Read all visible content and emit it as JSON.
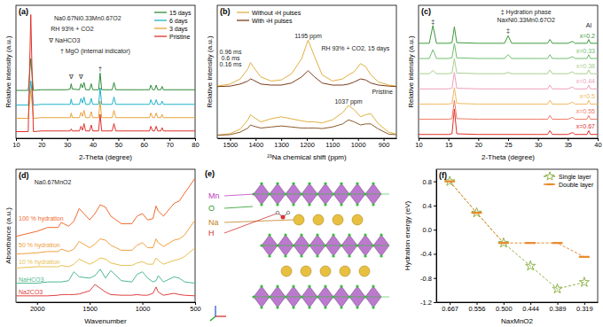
{
  "chart_data": [
    {
      "type": "line",
      "title": "(a)",
      "xlabel": "2-Theta (degree)",
      "ylabel": "Relative intensity (a.u.)",
      "xlim": [
        10,
        80
      ],
      "xticks": [
        10,
        20,
        30,
        40,
        50,
        60,
        70,
        80
      ],
      "ylim": [
        0,
        10
      ],
      "tick_labels": "x",
      "legend": "upper right",
      "x": [
        10,
        14.8,
        15.8,
        16.8,
        20,
        30,
        31.2,
        31.6,
        32,
        34.8,
        35.4,
        36.0,
        36.6,
        37.2,
        38.8,
        39.4,
        40,
        42.3,
        42.9,
        43.5,
        47.6,
        48.3,
        49,
        60,
        62.2,
        62.7,
        63.4,
        64.2,
        64.8,
        65.4,
        66.6,
        67.1,
        67.6,
        80
      ],
      "series": [
        {
          "name": "15 days",
          "color": "#2e8b3a",
          "values": [
            3.6,
            3.6,
            6.0,
            3.6,
            3.65,
            3.65,
            3.7,
            4.1,
            3.7,
            3.65,
            4.1,
            3.8,
            4.2,
            3.65,
            3.65,
            4.1,
            3.65,
            3.65,
            4.9,
            3.65,
            3.65,
            4.2,
            3.65,
            3.65,
            3.65,
            4.0,
            3.65,
            3.65,
            4.0,
            3.65,
            3.65,
            3.9,
            3.65,
            3.65
          ]
        },
        {
          "name": "6 days",
          "color": "#1fb3c8",
          "values": [
            2.5,
            2.5,
            4.3,
            2.5,
            2.55,
            2.55,
            2.55,
            2.95,
            2.55,
            2.55,
            3.0,
            2.65,
            3.1,
            2.55,
            2.55,
            3.0,
            2.55,
            2.55,
            3.8,
            2.55,
            2.55,
            3.1,
            2.55,
            2.55,
            2.55,
            2.9,
            2.55,
            2.55,
            2.9,
            2.55,
            2.55,
            2.8,
            2.55,
            2.55
          ]
        },
        {
          "name": "3 days",
          "color": "#e8a23a",
          "values": [
            1.5,
            1.5,
            3.7,
            1.5,
            1.55,
            1.55,
            1.55,
            1.9,
            1.55,
            1.55,
            1.95,
            1.65,
            2.1,
            1.55,
            1.55,
            2.0,
            1.55,
            1.55,
            2.8,
            1.55,
            1.55,
            2.1,
            1.55,
            1.55,
            1.55,
            1.9,
            1.55,
            1.55,
            1.9,
            1.55,
            1.55,
            1.8,
            1.55,
            1.55
          ]
        },
        {
          "name": "Pristine",
          "color": "#e0302a",
          "values": [
            0.5,
            0.5,
            9.3,
            0.5,
            0.55,
            0.55,
            0.55,
            0.7,
            0.55,
            0.55,
            0.9,
            0.6,
            1.1,
            0.55,
            0.55,
            1.0,
            0.55,
            0.55,
            1.8,
            0.55,
            0.55,
            1.1,
            0.55,
            0.55,
            0.55,
            0.9,
            0.55,
            0.55,
            0.9,
            0.55,
            0.55,
            0.8,
            0.55,
            0.55
          ]
        }
      ],
      "annotations": [
        {
          "text": "Na0.67Ni0.33Mn0.67O2",
          "x": 38,
          "y": 8.9
        },
        {
          "text": "RH 93% + CO2",
          "x": 32,
          "y": 8.1
        },
        {
          "text": "∇ NaHCO3",
          "x": 29,
          "y": 7.2
        },
        {
          "text": "† MgO (internal indicator)",
          "x": 41,
          "y": 6.4
        },
        {
          "text": "∇",
          "x": 31.6,
          "y": 4.5
        },
        {
          "text": "∇",
          "x": 35.4,
          "y": 4.5
        },
        {
          "text": "†",
          "x": 42.9,
          "y": 5.1
        }
      ]
    },
    {
      "type": "line",
      "title": "(b)",
      "xlabel": "²³Na chemical shift (ppm)",
      "ylabel": "Relative intensity (a.u.)",
      "xlim": [
        1550,
        850
      ],
      "xticks": [
        1500,
        1400,
        1300,
        1200,
        1100,
        1000,
        900
      ],
      "ylim": [
        0,
        13
      ],
      "tick_labels": "x",
      "legend": "upper left",
      "x": [
        1550,
        1500,
        1460,
        1430,
        1420,
        1410,
        1380,
        1340,
        1300,
        1260,
        1220,
        1195,
        1170,
        1140,
        1100,
        1060,
        1037,
        1015,
        990,
        970,
        950,
        920,
        880,
        850
      ],
      "series": [
        {
          "name": "Without ¹H pulses",
          "color": "#e0b040",
          "values": [
            5.1,
            5.3,
            5.8,
            6.8,
            7.4,
            7.0,
            6.0,
            5.6,
            5.7,
            6.3,
            7.8,
            9.6,
            8.0,
            6.2,
            5.6,
            5.8,
            6.2,
            6.5,
            7.3,
            7.0,
            6.2,
            5.5,
            5.2,
            5.1
          ]
        },
        {
          "name": "With ¹H pulses",
          "color": "#7a3b1a",
          "values": [
            5.05,
            5.1,
            5.3,
            5.6,
            5.8,
            5.7,
            5.3,
            5.2,
            5.2,
            5.4,
            6.0,
            6.6,
            6.0,
            5.4,
            5.2,
            5.2,
            5.3,
            5.5,
            5.8,
            5.7,
            5.4,
            5.2,
            5.1,
            5.05
          ]
        },
        {
          "name": "Without ¹H pulses",
          "color": "#e0b040",
          "values": [
            0.3,
            0.45,
            0.9,
            1.8,
            2.3,
            2.1,
            1.6,
            1.9,
            2.1,
            1.9,
            1.7,
            1.6,
            1.6,
            1.5,
            1.8,
            2.5,
            3.2,
            2.8,
            2.1,
            2.3,
            2.4,
            1.4,
            0.6,
            0.4
          ]
        },
        {
          "name": "With ¹H pulses",
          "color": "#8b5a2b",
          "values": [
            0.3,
            0.35,
            0.6,
            1.0,
            1.3,
            1.2,
            1.0,
            1.1,
            1.2,
            1.1,
            1.0,
            1.0,
            1.0,
            0.95,
            1.1,
            1.4,
            1.8,
            1.6,
            1.3,
            1.4,
            1.4,
            0.9,
            0.4,
            0.35
          ]
        }
      ],
      "annotations": [
        {
          "text": "1195 ppm",
          "x": 1195,
          "y": 9.8
        },
        {
          "text": "1037 ppm",
          "x": 1037,
          "y": 3.4
        },
        {
          "text": "RH 93% + CO2, 15 days",
          "x": 1010,
          "y": 8.6
        },
        {
          "text": "Pristine",
          "x": 905,
          "y": 4.3
        },
        {
          "text": "0.96 ms",
          "x": 1498,
          "y": 8.2
        },
        {
          "text": "0.6 ms",
          "x": 1498,
          "y": 7.6
        },
        {
          "text": "0.16 ms",
          "x": 1498,
          "y": 7.0
        }
      ]
    },
    {
      "type": "line",
      "title": "(c)",
      "xlabel": "2-Theta (degree)",
      "ylabel": "Relative intensity (a.u.)",
      "xlim": [
        10,
        40
      ],
      "xticks": [
        10,
        15,
        20,
        25,
        30,
        35,
        40
      ],
      "ylim": [
        0,
        10.5
      ],
      "tick_labels": "x",
      "legend": "right",
      "x": [
        10,
        11.8,
        12.4,
        13,
        15,
        15.6,
        16.0,
        16.4,
        20,
        24.4,
        25.0,
        25.6,
        30,
        31.6,
        32.0,
        32.4,
        35,
        35.8,
        36.2,
        37,
        38.2,
        38.5,
        38.8,
        40
      ],
      "series": [
        {
          "name": "x=0.2",
          "color": "#3c9a3c",
          "values": [
            7.5,
            7.5,
            8.9,
            7.5,
            7.5,
            7.55,
            8.8,
            7.55,
            7.5,
            7.5,
            8.1,
            7.5,
            7.5,
            7.5,
            7.8,
            7.5,
            7.5,
            7.65,
            7.5,
            7.5,
            7.5,
            7.8,
            7.5,
            7.5
          ]
        },
        {
          "name": "x=0.33",
          "color": "#6fbf6f",
          "values": [
            6.3,
            6.3,
            7.0,
            6.3,
            6.3,
            6.35,
            7.5,
            6.35,
            6.3,
            6.3,
            6.6,
            6.3,
            6.3,
            6.3,
            6.6,
            6.3,
            6.3,
            6.45,
            6.3,
            6.3,
            6.3,
            6.6,
            6.3,
            6.3
          ]
        },
        {
          "name": "x=0.38",
          "color": "#a9cf8f",
          "values": [
            5.1,
            5.1,
            5.35,
            5.1,
            5.1,
            5.15,
            6.3,
            5.15,
            5.1,
            5.1,
            5.2,
            5.1,
            5.1,
            5.1,
            5.4,
            5.1,
            5.1,
            5.25,
            5.1,
            5.1,
            5.1,
            5.4,
            5.1,
            5.1
          ]
        },
        {
          "name": "x=0.44",
          "color": "#ee9fbb",
          "values": [
            3.9,
            3.9,
            3.9,
            3.9,
            3.9,
            3.95,
            5.2,
            3.95,
            3.9,
            3.9,
            3.9,
            3.9,
            3.9,
            3.9,
            4.2,
            3.9,
            3.9,
            4.05,
            3.9,
            3.9,
            3.9,
            4.2,
            3.9,
            3.9
          ]
        },
        {
          "name": "x=0.5",
          "color": "#f0b860",
          "values": [
            2.7,
            2.7,
            2.7,
            2.7,
            2.7,
            2.75,
            4.0,
            2.75,
            2.7,
            2.7,
            2.7,
            2.7,
            2.7,
            2.7,
            3.0,
            2.7,
            2.7,
            2.85,
            2.7,
            2.7,
            2.7,
            3.0,
            2.7,
            2.7
          ]
        },
        {
          "name": "x=0.55",
          "color": "#ee7a66",
          "values": [
            1.5,
            1.5,
            1.5,
            1.5,
            1.5,
            1.55,
            3.0,
            1.55,
            1.5,
            1.5,
            1.5,
            1.5,
            1.5,
            1.5,
            1.8,
            1.5,
            1.5,
            1.65,
            1.5,
            1.5,
            1.5,
            1.8,
            1.5,
            1.5
          ]
        },
        {
          "name": "x=0.67",
          "color": "#e0302a",
          "values": [
            0.3,
            0.3,
            0.3,
            0.3,
            0.3,
            0.35,
            2.3,
            0.35,
            0.3,
            0.3,
            0.3,
            0.3,
            0.3,
            0.3,
            0.6,
            0.3,
            0.3,
            0.45,
            0.3,
            0.3,
            0.3,
            0.6,
            0.3,
            0.3
          ]
        }
      ],
      "annotations": [
        {
          "text": "‡ Hydration phase",
          "x": 28,
          "y": 9.8
        },
        {
          "text": "NaxNi0.33Mn0.67O2",
          "x": 28,
          "y": 9.15
        },
        {
          "text": "‡",
          "x": 12.4,
          "y": 9.05
        },
        {
          "text": "‡",
          "x": 25,
          "y": 8.35
        },
        {
          "text": "Al",
          "x": 38.5,
          "y": 8.75
        }
      ]
    },
    {
      "type": "line",
      "title": "(d)",
      "xlabel": "Wavenumber",
      "ylabel": "Absorbance (a.u.)",
      "xlim": [
        2200,
        500
      ],
      "xticks": [
        2000,
        1500,
        1000,
        500
      ],
      "ylim": [
        0,
        10.5
      ],
      "tick_labels": "x",
      "legend": "left",
      "x": [
        2200,
        2000,
        1900,
        1800,
        1770,
        1700,
        1650,
        1600,
        1500,
        1450,
        1400,
        1350,
        1300,
        1200,
        1100,
        1050,
        1000,
        950,
        900,
        870,
        850,
        800,
        700,
        650,
        600,
        500
      ],
      "series": [
        {
          "name": "100 % hydration",
          "color": "#ef6a2e",
          "values": [
            5.2,
            5.6,
            5.9,
            5.9,
            6.3,
            6.0,
            6.4,
            7.4,
            6.5,
            7.0,
            7.7,
            7.5,
            6.8,
            6.2,
            6.2,
            6.8,
            7.0,
            6.5,
            6.6,
            7.6,
            7.2,
            6.8,
            7.8,
            8.0,
            8.6,
            9.8
          ]
        },
        {
          "name": "50 % hydration",
          "color": "#f0a040",
          "values": [
            3.8,
            3.9,
            4.0,
            4.0,
            4.2,
            4.0,
            4.2,
            4.8,
            4.3,
            4.6,
            5.0,
            4.9,
            4.5,
            4.1,
            4.1,
            4.5,
            4.7,
            4.3,
            4.3,
            5.0,
            4.7,
            4.4,
            4.9,
            5.0,
            5.3,
            6.5
          ]
        },
        {
          "name": "10 % hydration",
          "color": "#e8c050",
          "values": [
            2.7,
            2.8,
            2.8,
            2.8,
            2.9,
            2.8,
            3.0,
            3.4,
            3.0,
            3.2,
            3.5,
            3.4,
            3.1,
            2.9,
            2.9,
            3.1,
            3.2,
            3.0,
            3.0,
            3.5,
            3.3,
            3.0,
            3.3,
            3.4,
            3.6,
            4.3
          ]
        },
        {
          "name": "NaHCO3",
          "color": "#4fb893",
          "values": [
            1.5,
            1.5,
            1.6,
            1.6,
            1.6,
            1.7,
            2.4,
            2.0,
            1.9,
            2.1,
            2.6,
            1.9,
            2.5,
            1.7,
            1.6,
            2.2,
            2.4,
            1.9,
            1.6,
            1.7,
            2.1,
            1.6,
            2.0,
            1.9,
            1.6,
            1.5
          ]
        },
        {
          "name": "Na2CO3",
          "color": "#e04040",
          "values": [
            0.5,
            0.5,
            0.5,
            0.55,
            0.6,
            0.6,
            0.6,
            0.65,
            0.9,
            1.4,
            1.1,
            0.8,
            0.6,
            0.55,
            0.55,
            0.6,
            0.55,
            0.55,
            0.7,
            1.2,
            0.8,
            0.55,
            0.7,
            0.6,
            0.55,
            0.5
          ]
        }
      ],
      "annotations": [
        {
          "text": "Na0.67MnO2",
          "x": 1850,
          "y": 9.3
        }
      ]
    },
    {
      "type": "diagram",
      "title": "(e)",
      "labels": [
        "Mn",
        "O",
        "Na",
        "H"
      ]
    },
    {
      "type": "line",
      "title": "(f)",
      "xlabel": "NaxMnO2",
      "ylabel": "Hydration energy (eV)",
      "categories": [
        "0.667",
        "0.556",
        "0.500",
        "0.444",
        "0.389",
        "0.319"
      ],
      "ylim": [
        -1.2,
        1.0
      ],
      "yticks": [
        -1.2,
        -0.8,
        -0.4,
        {
          "value": 0,
          "label": "0.0"
        },
        0.4,
        0.8
      ],
      "legend": "upper right",
      "series": [
        {
          "name": "Single layer",
          "color": "#8fb34a",
          "marker": "star",
          "line_style": "dashed",
          "values": [
            0.8,
            0.28,
            -0.22,
            -0.6,
            -0.98,
            -0.87
          ]
        },
        {
          "name": "Double layer",
          "color": "#e8892b",
          "marker": "dash",
          "line_style": "dashed",
          "values": [
            0.8,
            0.28,
            -0.22,
            -0.22,
            -0.22,
            -0.45
          ]
        }
      ]
    }
  ]
}
